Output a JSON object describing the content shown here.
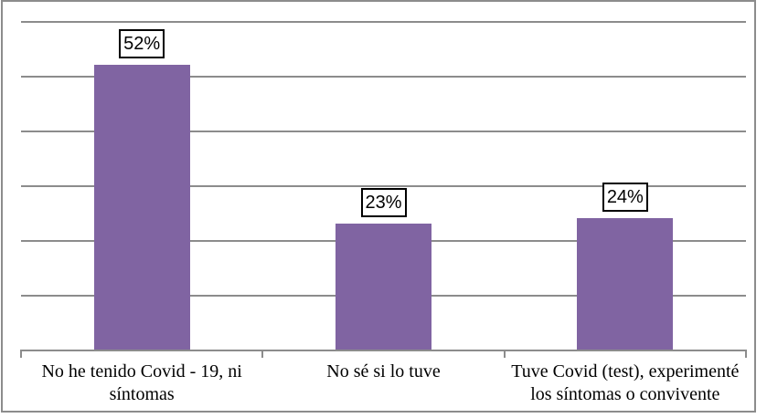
{
  "chart_data": {
    "type": "bar",
    "title": "",
    "xlabel": "",
    "ylabel": "",
    "categories": [
      "No he tenido Covid - 19, ni síntomas",
      "No sé si lo tuve",
      "Tuve Covid (test), experimenté los síntomas o convivente"
    ],
    "category_lines": [
      [
        "No he tenido Covid - 19, ni",
        "síntomas"
      ],
      [
        "No sé si lo tuve"
      ],
      [
        "Tuve Covid (test), experimenté",
        "los síntomas o convivente"
      ]
    ],
    "values": [
      52,
      23,
      24
    ],
    "data_labels": [
      "52%",
      "23%",
      "24%"
    ],
    "ylim": [
      0,
      60
    ],
    "ytick_step": 10,
    "grid": true,
    "legend": "none",
    "y_tick_labels_visible": false,
    "colors": {
      "bar_fill": "#8064A2",
      "gridline": "#8C8C8C",
      "axis_line": "#8C8C8C",
      "frame_border": "#8C8C8C",
      "label_box_border": "#000000",
      "label_box_background": "#FFFFFF",
      "text": "#000000"
    }
  }
}
